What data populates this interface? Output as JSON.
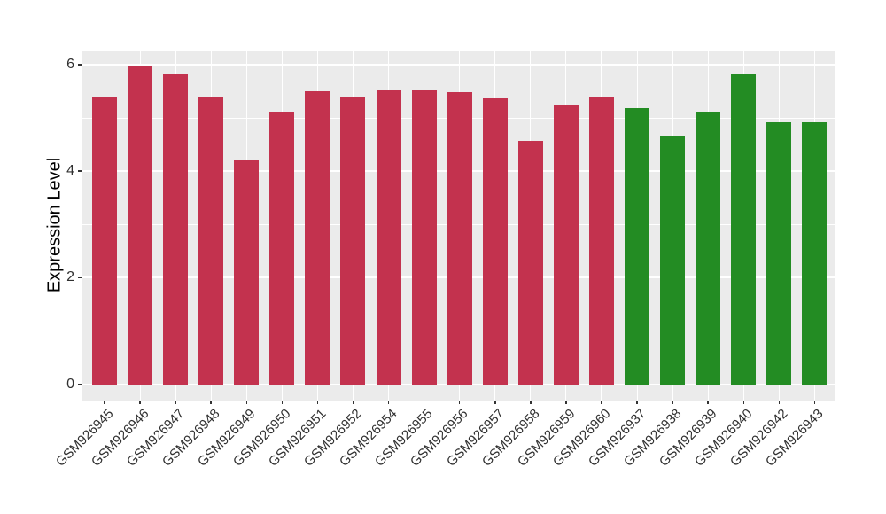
{
  "chart_data": {
    "type": "bar",
    "title": "",
    "xlabel": "",
    "ylabel": "Expression Level",
    "legend_position": "none",
    "grid": true,
    "ylim": [
      -0.31,
      6.26
    ],
    "yticks": [
      0,
      2,
      4,
      6
    ],
    "minor_gridlines": [
      1,
      3,
      5
    ],
    "categories": [
      "GSM926945",
      "GSM926946",
      "GSM926947",
      "GSM926948",
      "GSM926949",
      "GSM926950",
      "GSM926951",
      "GSM926952",
      "GSM926954",
      "GSM926955",
      "GSM926956",
      "GSM926957",
      "GSM926958",
      "GSM926959",
      "GSM926960",
      "GSM926937",
      "GSM926938",
      "GSM926939",
      "GSM926940",
      "GSM926942",
      "GSM926943"
    ],
    "values": [
      5.4,
      5.96,
      5.82,
      5.38,
      4.21,
      5.11,
      5.5,
      5.38,
      5.54,
      5.54,
      5.49,
      5.37,
      4.56,
      5.23,
      5.39,
      5.18,
      4.67,
      5.12,
      5.81,
      4.92,
      4.92
    ],
    "groups": [
      0,
      0,
      0,
      0,
      0,
      0,
      0,
      0,
      0,
      0,
      0,
      0,
      0,
      0,
      0,
      1,
      1,
      1,
      1,
      1,
      1
    ],
    "group_colors": [
      "#C3324E",
      "#238C23"
    ],
    "colors": {
      "panel_background": "#EBEBEB",
      "gridline": "#FFFFFF",
      "page_background": "#FFFFFF",
      "tick_text": "#303030",
      "axis_title_text": "#000000"
    }
  }
}
